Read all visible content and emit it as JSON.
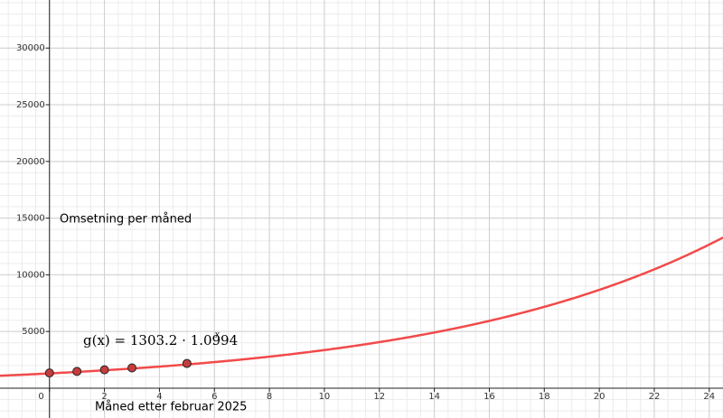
{
  "chart_data": {
    "type": "function",
    "xlabel": "Måned etter februar 2025",
    "ylabel": "Omsetning per måned",
    "xlim": [
      -1.8,
      24.5
    ],
    "ylim": [
      -2630,
      34240
    ],
    "xticks": [
      0,
      2,
      4,
      6,
      8,
      10,
      12,
      14,
      16,
      18,
      20,
      22,
      24
    ],
    "yticks": [
      5000,
      10000,
      15000,
      20000,
      25000,
      30000
    ],
    "grid": true,
    "function": {
      "label": "g(x) = 1303.2 · 1.0994",
      "exponent_label": "x",
      "a": 1303.2,
      "b": 1.0994,
      "color": "#f24a4a"
    },
    "points": {
      "x": [
        0,
        1,
        2,
        3,
        5
      ],
      "y": [
        1340,
        1480,
        1620,
        1790,
        2180
      ],
      "color": "#c43c3c"
    }
  }
}
